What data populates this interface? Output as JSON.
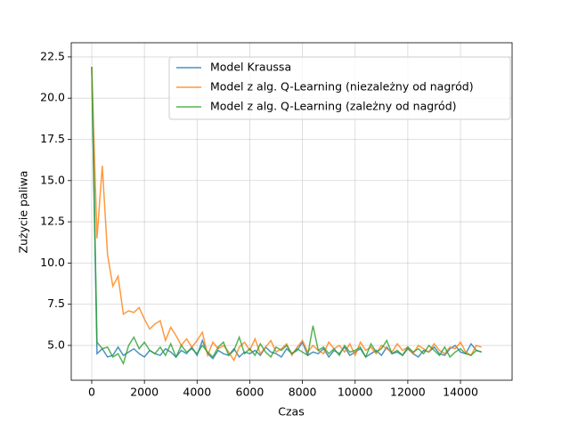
{
  "chart_data": {
    "type": "line",
    "xlabel": "Czas",
    "ylabel": "Zużycie paliwa",
    "x": [
      0,
      200,
      400,
      600,
      800,
      1000,
      1200,
      1400,
      1600,
      1800,
      2000,
      2200,
      2400,
      2600,
      2800,
      3000,
      3200,
      3400,
      3600,
      3800,
      4000,
      4200,
      4400,
      4600,
      4800,
      5000,
      5200,
      5400,
      5600,
      5800,
      6000,
      6200,
      6400,
      6600,
      6800,
      7000,
      7200,
      7400,
      7600,
      7800,
      8000,
      8200,
      8400,
      8600,
      8800,
      9000,
      9200,
      9400,
      9600,
      9800,
      10000,
      10200,
      10400,
      10600,
      10800,
      11000,
      11200,
      11400,
      11600,
      11800,
      12000,
      12200,
      12400,
      12600,
      12800,
      13000,
      13200,
      13400,
      13600,
      13800,
      14000,
      14200,
      14400,
      14600,
      14800
    ],
    "series": [
      {
        "name": "Model Kraussa",
        "color": "#1f77b4",
        "values": [
          21.9,
          4.5,
          4.8,
          4.3,
          4.4,
          4.9,
          4.4,
          4.6,
          4.8,
          4.5,
          4.3,
          4.7,
          4.5,
          4.4,
          4.8,
          4.6,
          4.3,
          4.7,
          4.5,
          4.9,
          4.4,
          5.3,
          4.5,
          4.2,
          4.7,
          4.5,
          4.4,
          4.8,
          4.3,
          4.6,
          4.5,
          4.7,
          4.4,
          4.9,
          4.6,
          4.5,
          4.3,
          4.8,
          4.5,
          4.7,
          5.2,
          4.4,
          4.6,
          4.5,
          4.8,
          4.3,
          4.7,
          4.5,
          4.9,
          4.4,
          4.6,
          4.8,
          4.3,
          4.5,
          4.7,
          4.4,
          4.9,
          4.5,
          4.6,
          4.4,
          4.8,
          4.5,
          4.3,
          4.7,
          4.6,
          4.9,
          4.5,
          4.4,
          4.8,
          5.0,
          4.6,
          4.5,
          5.1,
          4.7,
          4.6
        ]
      },
      {
        "name": "Model z alg. Q-Learning (niezależny od nagród)",
        "color": "#ff7f0e",
        "values": [
          21.9,
          11.5,
          15.9,
          10.5,
          8.6,
          9.2,
          6.9,
          7.1,
          7.0,
          7.3,
          6.6,
          6.0,
          6.3,
          6.5,
          5.3,
          6.1,
          5.6,
          5.0,
          5.4,
          4.9,
          5.3,
          5.8,
          4.4,
          5.2,
          4.8,
          5.0,
          4.6,
          4.1,
          4.9,
          5.2,
          4.7,
          5.4,
          4.5,
          4.9,
          5.3,
          4.6,
          4.8,
          5.1,
          4.4,
          4.9,
          5.3,
          4.6,
          5.0,
          4.7,
          4.5,
          5.2,
          4.8,
          5.0,
          4.6,
          5.1,
          4.4,
          5.2,
          4.7,
          4.9,
          4.5,
          5.0,
          4.8,
          4.6,
          5.1,
          4.7,
          4.9,
          4.5,
          5.0,
          4.8,
          4.6,
          5.1,
          4.7,
          4.5,
          4.9,
          4.8,
          5.2,
          4.6,
          4.4,
          5.0,
          4.9
        ]
      },
      {
        "name": "Model z alg. Q-Learning (zależny od nagród)",
        "color": "#2ca02c",
        "values": [
          21.9,
          5.2,
          4.8,
          4.9,
          4.3,
          4.5,
          3.9,
          5.0,
          5.5,
          4.8,
          5.2,
          4.7,
          4.5,
          4.9,
          4.4,
          5.1,
          4.3,
          5.0,
          4.6,
          4.8,
          4.5,
          5.0,
          4.6,
          4.3,
          4.9,
          5.2,
          4.4,
          4.7,
          5.5,
          4.5,
          4.8,
          4.4,
          5.1,
          4.6,
          4.3,
          4.9,
          4.7,
          5.0,
          4.5,
          4.8,
          4.6,
          4.4,
          6.2,
          4.7,
          4.9,
          4.5,
          4.8,
          4.4,
          5.0,
          4.6,
          4.7,
          4.9,
          4.3,
          5.1,
          4.6,
          4.8,
          5.3,
          4.5,
          4.7,
          4.4,
          4.9,
          4.6,
          4.8,
          4.5,
          5.0,
          4.7,
          4.4,
          4.9,
          4.3,
          4.6,
          4.8,
          4.5,
          4.4,
          4.7,
          4.6
        ]
      }
    ],
    "xlim": [
      -778,
      15960
    ],
    "ylim": [
      2.89,
      23.36
    ],
    "xticks": [
      0,
      2000,
      4000,
      6000,
      8000,
      10000,
      12000,
      14000
    ],
    "yticks": [
      {
        "value": 5,
        "label": "5.0"
      },
      7.5,
      {
        "value": 10,
        "label": "10.0"
      },
      12.5,
      {
        "value": 15,
        "label": "15.0"
      },
      17.5,
      {
        "value": 20,
        "label": "20.0"
      },
      22.5
    ],
    "grid": true,
    "legend": "upper right"
  }
}
